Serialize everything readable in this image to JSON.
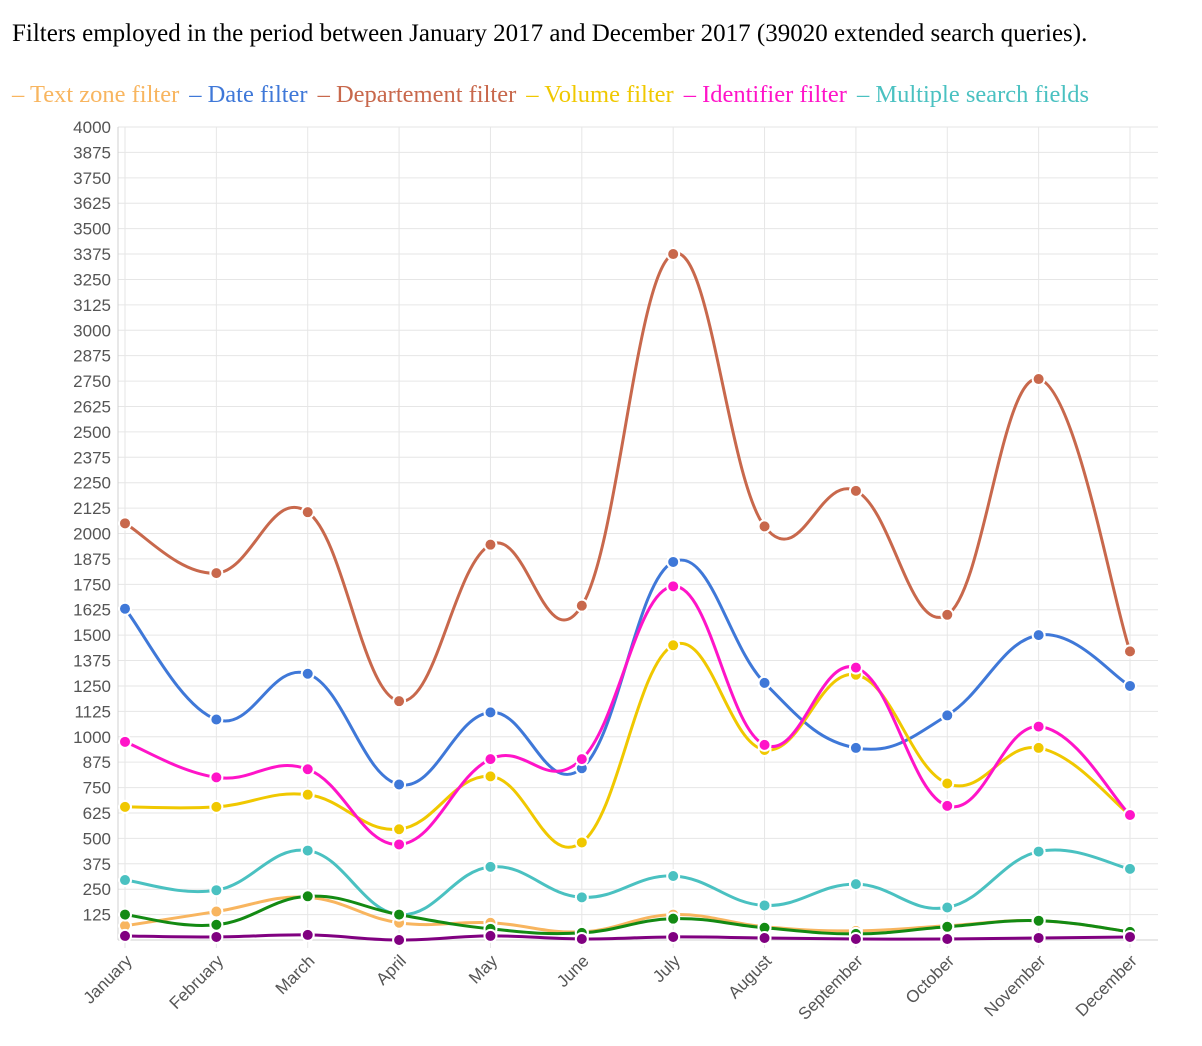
{
  "chart_data": {
    "type": "line",
    "title": "Filters employed in the period between January 2017 and December 2017 (39020 extended search queries).",
    "categories": [
      "January",
      "February",
      "March",
      "April",
      "May",
      "June",
      "July",
      "August",
      "September",
      "October",
      "November",
      "December"
    ],
    "ylim": [
      0,
      4000
    ],
    "yticks": [
      125,
      250,
      375,
      500,
      625,
      750,
      875,
      1000,
      1125,
      1250,
      1375,
      1500,
      1625,
      1750,
      1875,
      2000,
      2125,
      2250,
      2375,
      2500,
      2625,
      2750,
      2875,
      3000,
      3125,
      3250,
      3375,
      3500,
      3625,
      3750,
      3875,
      4000
    ],
    "grid": true,
    "legend_position": "top",
    "series": [
      {
        "name": "Text zone filter",
        "color": "#f8b55f",
        "values": [
          70,
          140,
          210,
          85,
          85,
          40,
          125,
          65,
          45,
          70,
          95,
          40
        ]
      },
      {
        "name": "Date filter",
        "color": "#3f78d8",
        "values": [
          1630,
          1085,
          1310,
          765,
          1120,
          845,
          1860,
          1265,
          945,
          1105,
          1500,
          1250
        ]
      },
      {
        "name": "Departement filter",
        "color": "#c8684c",
        "values": [
          2050,
          1805,
          2105,
          1175,
          1945,
          1645,
          3375,
          2035,
          2210,
          1600,
          2760,
          1420
        ]
      },
      {
        "name": "Volume filter",
        "color": "#f0c800",
        "values": [
          655,
          655,
          715,
          545,
          805,
          480,
          1450,
          935,
          1305,
          770,
          945,
          615
        ]
      },
      {
        "name": "Identifier filter",
        "color": "#ff14c8",
        "values": [
          975,
          800,
          840,
          470,
          890,
          890,
          1740,
          960,
          1340,
          660,
          1050,
          615
        ]
      },
      {
        "name": "Multiple search fields",
        "color": "#4ac1c1",
        "values": [
          295,
          245,
          440,
          125,
          360,
          210,
          315,
          170,
          275,
          160,
          435,
          350
        ]
      },
      {
        "name": "",
        "color": "#138a13",
        "values": [
          125,
          75,
          215,
          125,
          55,
          35,
          105,
          60,
          30,
          65,
          95,
          40
        ]
      },
      {
        "name": "",
        "color": "#800080",
        "values": [
          20,
          15,
          25,
          0,
          20,
          5,
          15,
          10,
          5,
          5,
          10,
          15
        ]
      }
    ]
  }
}
